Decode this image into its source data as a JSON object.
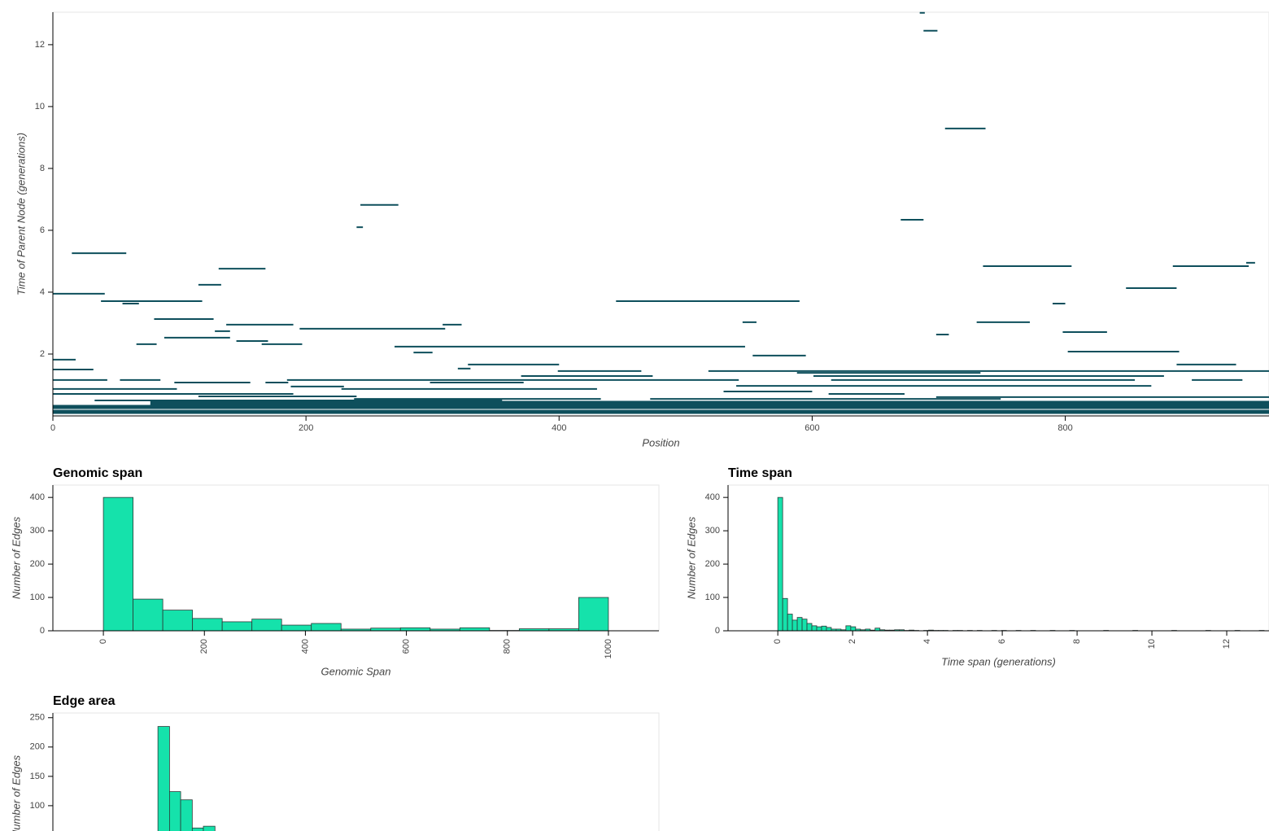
{
  "chart_data": [
    {
      "type": "segment",
      "xlabel": "Position",
      "ylabel": "Time of Parent Node (generations)",
      "color": "#0e4f5c",
      "xlim": [
        0,
        961
      ],
      "ylim": [
        0,
        13.05
      ],
      "xticks": [
        0,
        200,
        400,
        600,
        800
      ],
      "yticks": [
        2,
        4,
        6,
        8,
        10,
        12
      ],
      "segments": {
        "left": [
          685,
          688,
          705,
          243,
          240,
          670,
          15,
          131,
          735,
          885,
          943,
          115,
          848,
          0,
          38,
          445,
          55,
          790,
          80,
          730,
          545,
          137,
          195,
          308,
          128,
          798,
          88,
          698,
          66,
          145,
          165,
          270,
          285,
          553,
          802,
          0,
          328,
          888,
          320,
          0,
          399,
          518,
          588,
          370,
          601,
          0,
          53,
          96,
          168,
          185,
          298,
          615,
          900,
          540,
          0,
          188,
          228,
          530,
          613,
          0,
          115,
          698,
          238,
          472,
          33,
          77,
          0,
          0
        ],
        "right": [
          689,
          699,
          737,
          273,
          245,
          688,
          58,
          168,
          805,
          945,
          950,
          133,
          888,
          41,
          118,
          590,
          68,
          800,
          127,
          772,
          556,
          190,
          310,
          323,
          140,
          833,
          140,
          708,
          82,
          170,
          197,
          547,
          300,
          595,
          890,
          18,
          400,
          935,
          330,
          32,
          465,
          961,
          733,
          474,
          878,
          43,
          85,
          156,
          186,
          542,
          372,
          855,
          940,
          868,
          98,
          230,
          430,
          600,
          673,
          190,
          240,
          961,
          433,
          749,
          355,
          961,
          961,
          961
        ],
        "time": [
          13.03,
          12.45,
          9.29,
          6.82,
          6.1,
          6.34,
          5.26,
          4.76,
          4.84,
          4.84,
          4.95,
          4.24,
          4.13,
          3.95,
          3.71,
          3.71,
          3.63,
          3.63,
          3.13,
          3.03,
          3.03,
          2.95,
          2.82,
          2.95,
          2.74,
          2.71,
          2.53,
          2.63,
          2.32,
          2.42,
          2.32,
          2.24,
          2.05,
          1.95,
          2.08,
          1.82,
          1.66,
          1.66,
          1.53,
          1.5,
          1.45,
          1.45,
          1.39,
          1.29,
          1.29,
          1.16,
          1.16,
          1.08,
          1.08,
          1.16,
          1.08,
          1.16,
          1.16,
          0.97,
          0.87,
          0.95,
          0.87,
          0.79,
          0.71,
          0.71,
          0.63,
          0.61,
          0.55,
          0.55,
          0.5,
          0.42,
          0.29,
          0.13
        ]
      }
    },
    {
      "type": "histogram",
      "title": "Genomic span",
      "xlabel": "Genomic Span",
      "ylabel": "Number of Edges",
      "color": "#15e2ab",
      "xlim": [
        -100,
        1100
      ],
      "ylim": [
        0,
        437
      ],
      "xticks": [
        0,
        200,
        400,
        600,
        800,
        1000
      ],
      "yticks": [
        0,
        100,
        200,
        300,
        400
      ],
      "bins": [
        0,
        58.82,
        117.65,
        176.47,
        235.29,
        294.12,
        352.94,
        411.76,
        470.59,
        529.41,
        588.24,
        647.06,
        705.88,
        764.71,
        823.53,
        882.35,
        941.18,
        1000
      ],
      "values": [
        400,
        95,
        62,
        37,
        27,
        35,
        17,
        22,
        5,
        8,
        9,
        5,
        9,
        1,
        6,
        6,
        100
      ]
    },
    {
      "type": "histogram",
      "title": "Time span",
      "xlabel": "Time span (generations)",
      "ylabel": "Number of Edges",
      "color": "#15e2ab",
      "xlim": [
        -1.33,
        13.13
      ],
      "ylim": [
        0,
        437
      ],
      "xticks": [
        0,
        2,
        4,
        6,
        8,
        10,
        12
      ],
      "yticks": [
        0,
        100,
        200,
        300,
        400
      ],
      "bins": [
        0,
        0.13,
        0.26,
        0.39,
        0.52,
        0.65,
        0.78,
        0.91,
        1.04,
        1.17,
        1.3,
        1.43,
        1.56,
        1.69,
        1.82,
        1.95,
        2.08,
        2.21,
        2.34,
        2.47,
        2.6,
        2.73,
        2.86,
        2.99,
        3.12,
        3.25,
        3.38,
        3.51,
        3.64,
        3.77,
        3.9,
        4.03,
        4.16,
        4.29,
        4.42,
        4.55,
        4.68,
        4.81,
        4.94,
        5.07,
        5.2,
        5.33,
        5.46,
        5.59,
        5.72,
        5.85,
        5.98,
        6.11,
        6.24,
        6.37,
        6.5,
        6.63,
        6.76,
        6.89,
        7.02,
        7.15,
        7.28,
        7.41,
        7.54,
        7.67,
        7.8,
        7.93,
        8.06,
        8.19,
        8.32,
        8.45,
        8.58,
        8.71,
        8.84,
        8.97,
        9.1,
        9.23,
        9.36,
        9.49,
        9.62,
        9.75,
        9.88,
        10.01,
        10.14,
        10.27,
        10.4,
        10.53,
        10.66,
        10.79,
        10.92,
        11.05,
        11.18,
        11.31,
        11.44,
        11.57,
        11.7,
        11.83,
        11.96,
        12.09,
        12.22,
        12.35,
        12.48,
        12.61,
        12.74,
        12.87,
        13
      ],
      "values": [
        400,
        97,
        50,
        32,
        40,
        35,
        22,
        15,
        12,
        14,
        10,
        5,
        5,
        3,
        15,
        12,
        5,
        3,
        5,
        2,
        8,
        3,
        2,
        2,
        3,
        3,
        1,
        2,
        1,
        0,
        1,
        2,
        1,
        1,
        1,
        0,
        1,
        1,
        0,
        1,
        0,
        1,
        0,
        0,
        1,
        0,
        1,
        0,
        0,
        1,
        0,
        0,
        1,
        0,
        0,
        0,
        1,
        0,
        0,
        0,
        1,
        0,
        0,
        0,
        0,
        0,
        0,
        1,
        0,
        0,
        0,
        0,
        0,
        1,
        0,
        0,
        0,
        0,
        0,
        0,
        0,
        1,
        0,
        0,
        0,
        0,
        0,
        0,
        1,
        0,
        0,
        0,
        0,
        0,
        1,
        0,
        0,
        0,
        0,
        1
      ]
    },
    {
      "type": "histogram",
      "title": "Edge area",
      "ylabel": "Number of Edges",
      "color": "#15e2ab",
      "xlim": [
        -100,
        1100
      ],
      "ylim": [
        0,
        258
      ],
      "yticks": [
        100,
        150,
        200,
        250
      ],
      "bins": [
        108,
        131,
        153,
        176,
        198,
        221
      ],
      "values": [
        235,
        124,
        110,
        62,
        65
      ]
    }
  ]
}
